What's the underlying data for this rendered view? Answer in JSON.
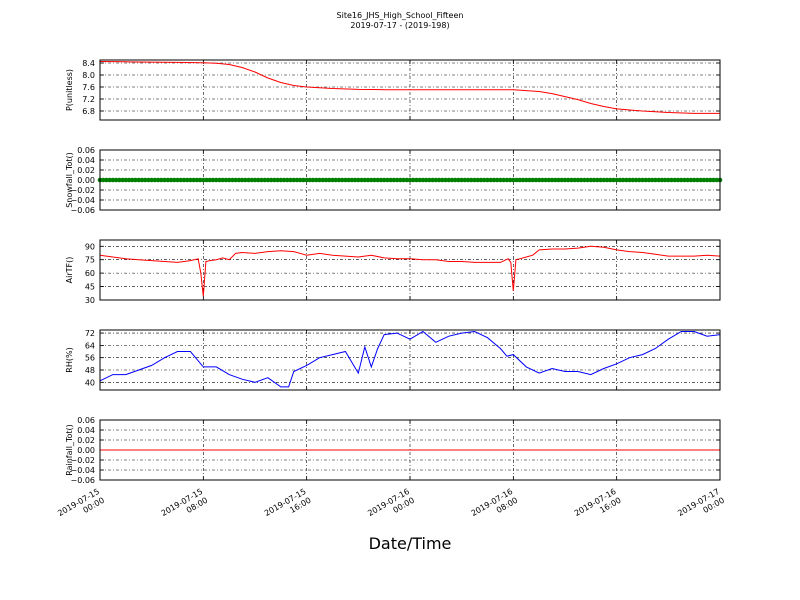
{
  "title": "Site16_JHS_High_School_Fifteen",
  "subtitle": "2019-07-17 - (2019-198)",
  "xlabel": "Date/Time",
  "chart_data": {
    "type": "line",
    "x_ticks": [
      "2019-07-15 00:00",
      "2019-07-15 08:00",
      "2019-07-15 16:00",
      "2019-07-16 00:00",
      "2019-07-16 08:00",
      "2019-07-16 16:00",
      "2019-07-17 00:00"
    ],
    "x_tick_labels": [
      [
        "2019-07-15",
        "00:00"
      ],
      [
        "2019-07-15",
        "08:00"
      ],
      [
        "2019-07-15",
        "16:00"
      ],
      [
        "2019-07-16",
        "00:00"
      ],
      [
        "2019-07-16",
        "08:00"
      ],
      [
        "2019-07-16",
        "16:00"
      ],
      [
        "2019-07-17",
        "00:00"
      ]
    ],
    "x_range": [
      "2019-07-15 00:00",
      "2019-07-17 00:00"
    ],
    "grid": true,
    "panels": [
      {
        "ylabel": "P(unitless)",
        "ylim": [
          6.5,
          8.5
        ],
        "yticks": [
          6.8,
          7.2,
          7.6,
          8.0,
          8.4
        ],
        "ytick_labels": [
          "6.8",
          "7.2",
          "7.6",
          "8.0",
          "8.4"
        ],
        "color": "#ff0000",
        "marker": "line",
        "x": [
          0,
          2,
          4,
          6,
          8,
          9,
          10,
          11,
          12,
          13,
          14,
          15,
          16,
          18,
          20,
          22,
          24,
          26,
          28,
          30,
          32,
          33,
          34,
          35,
          36,
          37,
          38,
          39,
          40,
          42,
          44,
          46,
          48
        ],
        "y": [
          8.45,
          8.44,
          8.43,
          8.42,
          8.41,
          8.39,
          8.35,
          8.25,
          8.1,
          7.9,
          7.75,
          7.65,
          7.6,
          7.55,
          7.52,
          7.51,
          7.51,
          7.51,
          7.51,
          7.51,
          7.51,
          7.48,
          7.45,
          7.38,
          7.28,
          7.18,
          7.05,
          6.95,
          6.87,
          6.8,
          6.75,
          6.72,
          6.72
        ]
      },
      {
        "ylabel": "Snowfall_Tot()",
        "ylim": [
          -0.06,
          0.06
        ],
        "yticks": [
          -0.06,
          -0.04,
          -0.02,
          0.0,
          0.02,
          0.04,
          0.06
        ],
        "ytick_labels": [
          "−0.06",
          "−0.04",
          "−0.02",
          "0.00",
          "0.02",
          "0.04",
          "0.06"
        ],
        "color": "#008000",
        "marker": "points",
        "x": [
          0,
          48
        ],
        "y": [
          0.0,
          0.0
        ]
      },
      {
        "ylabel": "AirTF()",
        "ylim": [
          30,
          97
        ],
        "yticks": [
          30,
          45,
          60,
          75,
          90
        ],
        "ytick_labels": [
          "30",
          "45",
          "60",
          "75",
          "90"
        ],
        "color": "#ff0000",
        "marker": "line",
        "x": [
          0,
          1,
          2,
          3,
          4,
          5,
          6,
          7,
          7.6,
          7.8,
          8.0,
          8.2,
          8.5,
          9,
          9.5,
          10,
          10.5,
          11,
          12,
          13,
          14,
          15,
          16,
          17,
          18,
          19,
          20,
          21,
          22,
          23,
          24,
          25,
          26,
          27,
          28,
          29,
          31,
          31.6,
          31.8,
          32.0,
          32.2,
          32.5,
          33,
          33.5,
          34,
          35,
          36,
          37,
          38,
          39,
          40,
          41,
          42,
          43,
          44,
          45,
          46,
          47,
          48
        ],
        "y": [
          80,
          78,
          76,
          75,
          74,
          73,
          72,
          74,
          76,
          60,
          34,
          73,
          74,
          75,
          77,
          75,
          82,
          83,
          82,
          84,
          85,
          84,
          80,
          82,
          80,
          79,
          78,
          80,
          77,
          76,
          76,
          75,
          75,
          73,
          73,
          72,
          72,
          76,
          72,
          40,
          75,
          76,
          78,
          80,
          86,
          87,
          87,
          88,
          90,
          89,
          86,
          84,
          83,
          81,
          79,
          79,
          79,
          80,
          79
        ]
      },
      {
        "ylabel": "RH(%)",
        "ylim": [
          35,
          74
        ],
        "yticks": [
          40,
          48,
          56,
          64,
          72
        ],
        "ytick_labels": [
          "40",
          "48",
          "56",
          "64",
          "72"
        ],
        "color": "#0000ff",
        "marker": "line",
        "x": [
          0,
          1,
          2,
          3,
          4,
          5,
          6,
          7,
          8,
          9,
          10,
          11,
          12,
          13,
          14,
          14.6,
          15,
          16,
          17,
          18,
          19,
          20,
          20.5,
          21,
          21.5,
          22,
          23,
          24,
          25,
          26,
          27,
          28,
          29,
          30,
          31,
          31.5,
          32,
          33,
          34,
          35,
          36,
          37,
          38,
          39,
          40,
          41,
          42,
          43,
          44,
          45,
          46,
          47,
          48
        ],
        "y": [
          41,
          45,
          45,
          48,
          51,
          56,
          60,
          60,
          50,
          50,
          45,
          42,
          40,
          43,
          37,
          37,
          47,
          51,
          56,
          58,
          60,
          46,
          63,
          50,
          62,
          71,
          72,
          68,
          73,
          66,
          70,
          72,
          73,
          69,
          62,
          57,
          58,
          50,
          46,
          49,
          47,
          47,
          45,
          49,
          52,
          56,
          58,
          62,
          68,
          73,
          73,
          70,
          71
        ]
      },
      {
        "ylabel": "Rainfall_Tot()",
        "ylim": [
          -0.06,
          0.06
        ],
        "yticks": [
          -0.06,
          -0.04,
          -0.02,
          0.0,
          0.02,
          0.04,
          0.06
        ],
        "ytick_labels": [
          "−0.06",
          "−0.04",
          "−0.02",
          "0.00",
          "0.02",
          "0.04",
          "0.06"
        ],
        "color": "#ff0000",
        "marker": "line",
        "x": [
          0,
          48
        ],
        "y": [
          0.0,
          0.0
        ]
      }
    ]
  }
}
